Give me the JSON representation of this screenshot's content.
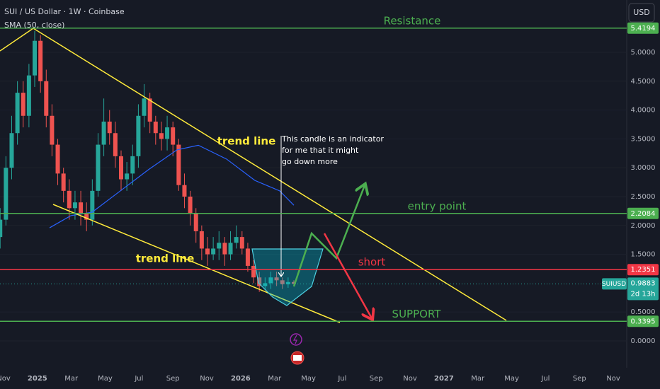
{
  "chart_data": {
    "type": "candlestick",
    "title": "SUI / US Dollar · 1W · Coinbase",
    "currency": "USD",
    "x": [
      -0.2,
      0.14,
      0.48,
      0.82,
      1.16,
      1.5,
      1.84,
      2.18,
      2.52,
      2.86,
      3.2,
      3.54,
      3.88,
      4.22,
      4.56,
      4.9,
      5.24,
      5.58,
      5.92,
      6.26,
      6.6,
      6.94,
      7.28,
      7.62,
      7.96,
      8.3,
      8.64,
      8.98,
      9.32,
      9.66,
      10.0,
      10.34,
      10.68,
      11.02,
      11.36,
      11.7,
      12.04,
      12.38,
      12.72,
      13.06,
      13.4,
      13.74,
      14.08,
      14.42,
      14.76,
      15.1,
      15.44,
      15.78,
      16.12,
      16.46,
      16.8,
      17.14
    ],
    "open": [
      1.8,
      2.1,
      3.0,
      3.6,
      4.3,
      3.9,
      4.6,
      5.2,
      4.5,
      3.9,
      3.4,
      2.9,
      2.6,
      2.3,
      2.4,
      2.2,
      2.1,
      2.6,
      3.4,
      3.8,
      3.6,
      3.2,
      2.8,
      2.9,
      3.2,
      3.9,
      4.2,
      3.8,
      3.6,
      3.5,
      3.7,
      3.4,
      2.7,
      2.5,
      2.2,
      1.9,
      1.6,
      1.5,
      1.6,
      1.7,
      1.5,
      1.7,
      1.8,
      1.6,
      1.3,
      1.1,
      0.95,
      1.0,
      1.1,
      1.05,
      0.98,
      1.02
    ],
    "high": [
      2.3,
      3.2,
      3.9,
      4.5,
      4.5,
      4.8,
      5.37,
      5.3,
      4.7,
      4.1,
      3.5,
      3.0,
      2.8,
      2.6,
      2.6,
      2.4,
      2.8,
      3.6,
      4.2,
      4.0,
      3.8,
      3.3,
      3.1,
      3.4,
      4.1,
      4.45,
      4.3,
      3.9,
      3.8,
      3.9,
      3.8,
      3.5,
      2.9,
      2.6,
      2.3,
      2.0,
      1.8,
      1.8,
      1.9,
      1.8,
      1.9,
      2.0,
      1.9,
      1.7,
      1.4,
      1.2,
      1.1,
      1.2,
      1.2,
      1.1,
      1.1,
      1.05
    ],
    "low": [
      1.6,
      2.0,
      2.8,
      3.4,
      3.7,
      3.7,
      4.4,
      4.3,
      3.7,
      3.2,
      2.7,
      2.4,
      2.1,
      2.1,
      2.0,
      1.9,
      2.0,
      2.5,
      3.2,
      3.4,
      3.0,
      2.6,
      2.6,
      2.7,
      3.0,
      3.7,
      3.6,
      3.4,
      3.3,
      3.3,
      3.2,
      2.6,
      2.3,
      2.0,
      1.7,
      1.4,
      1.3,
      1.4,
      1.4,
      1.3,
      1.4,
      1.6,
      1.5,
      1.2,
      1.0,
      0.85,
      0.88,
      0.9,
      0.95,
      0.9,
      0.92,
      0.95
    ],
    "close": [
      2.1,
      3.0,
      3.6,
      4.3,
      3.9,
      4.6,
      5.2,
      4.5,
      3.9,
      3.4,
      2.9,
      2.6,
      2.3,
      2.4,
      2.2,
      2.1,
      2.6,
      3.4,
      3.8,
      3.6,
      3.2,
      2.8,
      2.9,
      3.2,
      3.9,
      4.2,
      3.8,
      3.6,
      3.5,
      3.7,
      3.4,
      2.7,
      2.5,
      2.2,
      1.9,
      1.6,
      1.5,
      1.6,
      1.7,
      1.5,
      1.7,
      1.8,
      1.6,
      1.3,
      1.1,
      0.95,
      1.0,
      1.1,
      1.05,
      0.98,
      1.02,
      0.9883
    ],
    "up_color": "#26a69a",
    "down_color": "#ef5350",
    "sma": {
      "name": "SMA (50, close)",
      "color": "#2962ff",
      "x": [
        2.72,
        3.97,
        5.23,
        6.9,
        8.57,
        10.24,
        11.5,
        13.17,
        14.84,
        16.3,
        17.14
      ],
      "values": [
        1.96,
        2.17,
        2.23,
        2.6,
        2.97,
        3.31,
        3.39,
        3.15,
        2.78,
        2.6,
        2.35
      ]
    },
    "xlim": [
      -0.209,
      36.79
    ],
    "ylim": [
      -0.466,
      5.907
    ],
    "xticks": [
      {
        "value": 0,
        "label": "Nov"
      },
      {
        "value": 2,
        "label": "2025"
      },
      {
        "value": 4,
        "label": "Mar"
      },
      {
        "value": 6,
        "label": "May"
      },
      {
        "value": 8,
        "label": "Jul"
      },
      {
        "value": 10,
        "label": "Sep"
      },
      {
        "value": 12,
        "label": "Nov"
      },
      {
        "value": 14,
        "label": "2026"
      },
      {
        "value": 16,
        "label": "Mar"
      },
      {
        "value": 18,
        "label": "May"
      },
      {
        "value": 20,
        "label": "Jul"
      },
      {
        "value": 22,
        "label": "Sep"
      },
      {
        "value": 24,
        "label": "Nov"
      },
      {
        "value": 26,
        "label": "2027"
      },
      {
        "value": 28,
        "label": "Mar"
      },
      {
        "value": 30,
        "label": "May"
      },
      {
        "value": 32,
        "label": "Jul"
      },
      {
        "value": 34,
        "label": "Sep"
      },
      {
        "value": 36,
        "label": "Nov"
      }
    ],
    "yticks": [
      {
        "value": 0,
        "label": "0.0000"
      },
      {
        "value": 0.5,
        "label": "0.5000"
      },
      {
        "value": 1.5,
        "label": "1.5000"
      },
      {
        "value": 2,
        "label": "2.0000"
      },
      {
        "value": 2.5,
        "label": "2.5000"
      },
      {
        "value": 3,
        "label": "3.0000"
      },
      {
        "value": 3.5,
        "label": "3.5000"
      },
      {
        "value": 4,
        "label": "4.0000"
      },
      {
        "value": 4.5,
        "label": "4.5000"
      },
      {
        "value": 5,
        "label": "5.0000"
      }
    ],
    "levels": [
      {
        "label": "Resistance",
        "value": 5.4194,
        "color": "#4caf50"
      },
      {
        "label": "entry point",
        "value": 2.2084,
        "color": "#4caf50"
      },
      {
        "label": "short",
        "value": 1.2351,
        "color": "#f23645"
      },
      {
        "label": "SUPPORT",
        "value": 0.3395,
        "color": "#4caf50"
      }
    ],
    "last_price": {
      "symbol": "SUIUSD",
      "value": 0.9883,
      "countdown": "2d 13h"
    },
    "trend_line_labels": [
      "trend line",
      "trend line"
    ],
    "note": [
      "This candle is an indicator",
      "for me that it might",
      "go down more"
    ]
  }
}
